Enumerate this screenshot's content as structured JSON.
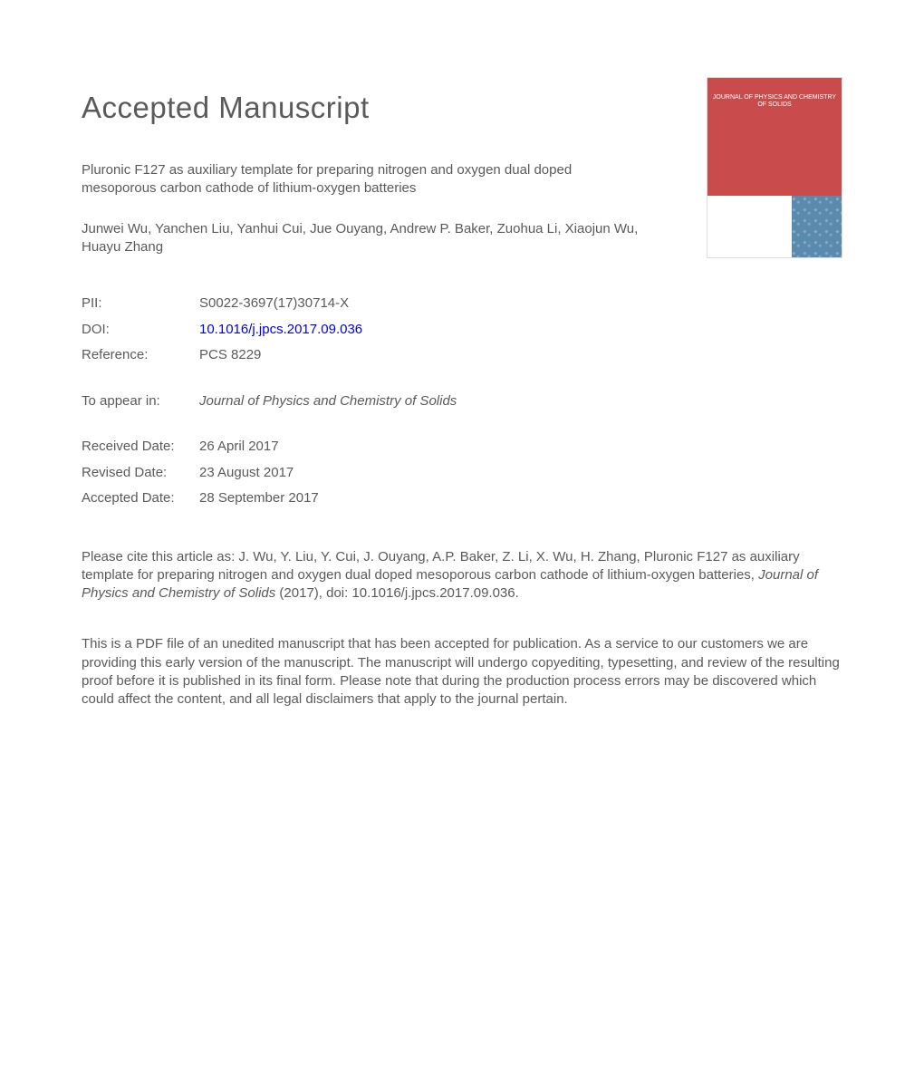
{
  "heading": "Accepted Manuscript",
  "article": {
    "title": "Pluronic F127 as auxiliary template for preparing nitrogen and oxygen dual doped mesoporous carbon cathode of lithium-oxygen batteries",
    "authors": "Junwei Wu, Yanchen Liu, Yanhui Cui, Jue Ouyang, Andrew P. Baker, Zuohua Li, Xiaojun Wu, Huayu Zhang"
  },
  "meta": {
    "pii_label": "PII:",
    "pii": "S0022-3697(17)30714-X",
    "doi_label": "DOI:",
    "doi": "10.1016/j.jpcs.2017.09.036",
    "ref_label": "Reference:",
    "ref": "PCS 8229",
    "appear_label": "To appear in:",
    "appear_value": "Journal of Physics and Chemistry of Solids",
    "received_label": "Received Date:",
    "received": "26 April 2017",
    "revised_label": "Revised Date:",
    "revised": "23 August 2017",
    "accepted_label": "Accepted Date:",
    "accepted": "28 September 2017"
  },
  "citation": {
    "prefix": "Please cite this article as: J. Wu, Y. Liu, Y. Cui, J. Ouyang, A.P. Baker, Z. Li, X. Wu, H. Zhang, Pluronic F127 as auxiliary template for preparing nitrogen and oxygen dual doped mesoporous carbon cathode of lithium-oxygen batteries, ",
    "journal": "Journal of Physics and Chemistry of Solids",
    "suffix": " (2017), doi: 10.1016/j.jpcs.2017.09.036."
  },
  "disclaimer": "This is a PDF file of an unedited manuscript that has been accepted for publication. As a service to our customers we are providing this early version of the manuscript. The manuscript will undergo copyediting, typesetting, and review of the resulting proof before it is published in its final form. Please note that during the production process errors may be discovered which could affect the content, and all legal disclaimers that apply to the journal pertain.",
  "cover": {
    "journal_name": "JOURNAL OF PHYSICS AND CHEMISTRY OF SOLIDS"
  },
  "colors": {
    "text": "#5a5a5a",
    "link": "#0000ee",
    "cover_red": "#c94b4b",
    "cover_blue": "#5a8aad",
    "background": "#ffffff"
  },
  "typography": {
    "heading_fontsize": 33,
    "body_fontsize": 15,
    "line_height": 1.35
  }
}
